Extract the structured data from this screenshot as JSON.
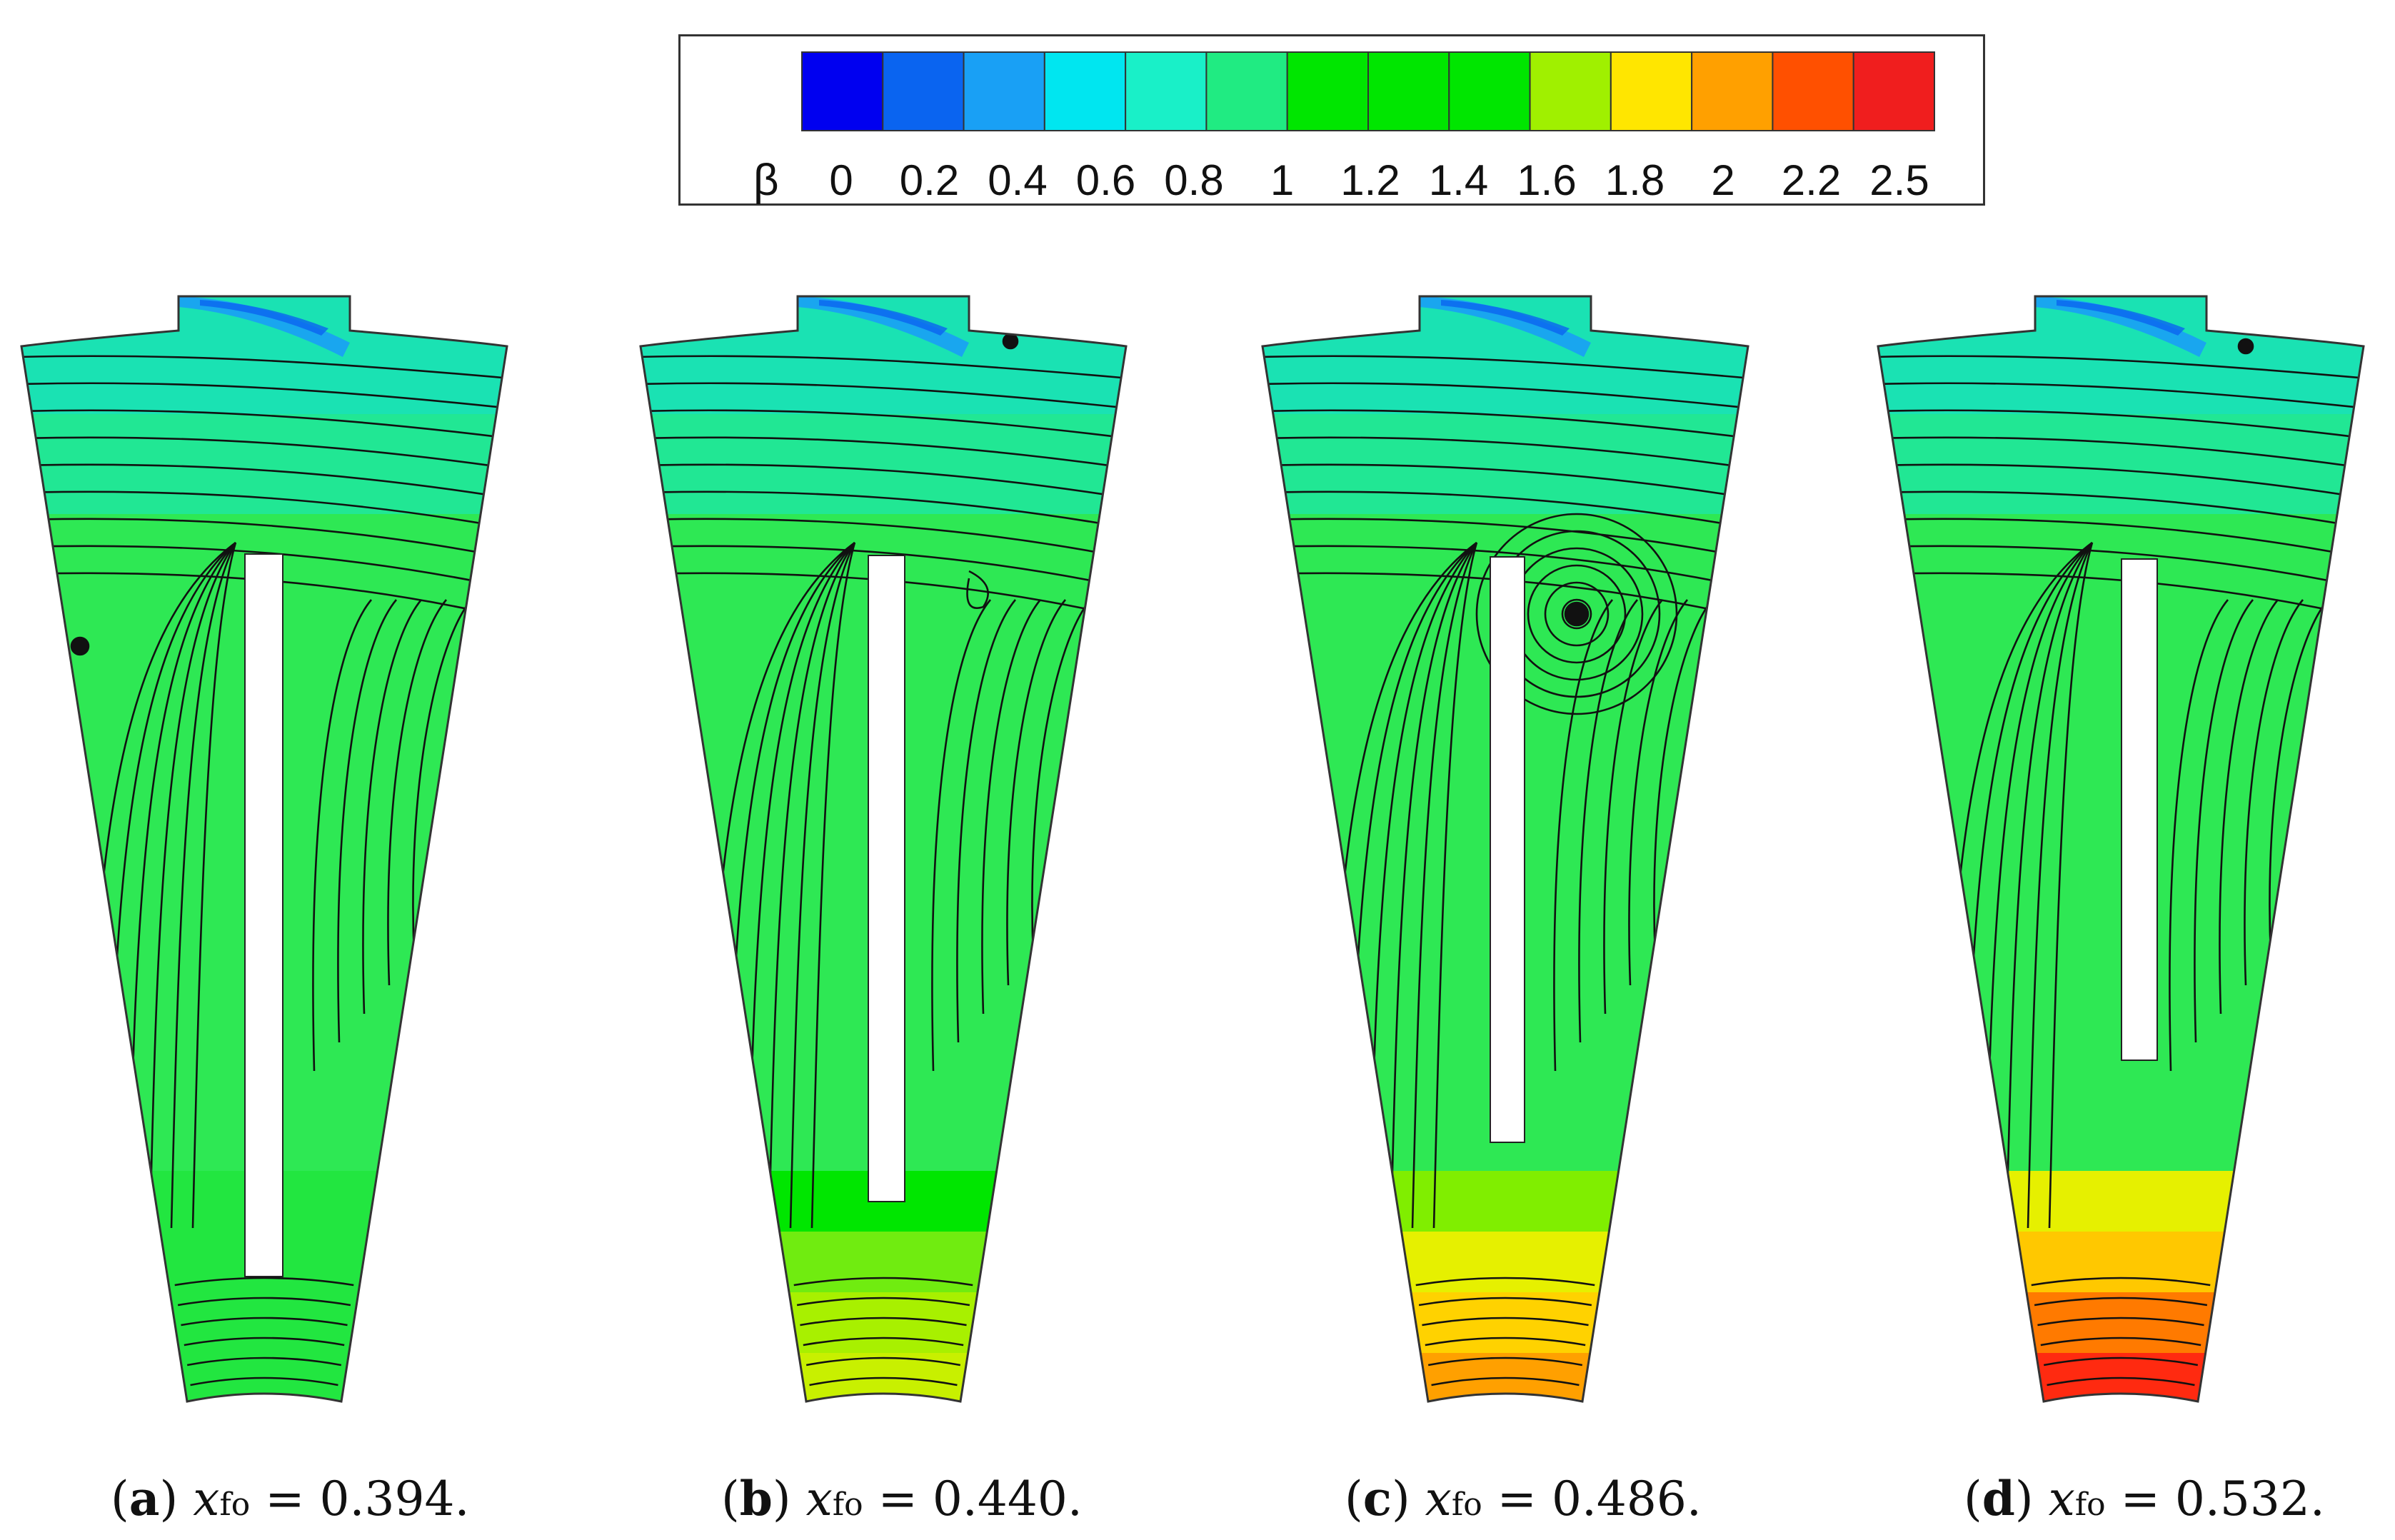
{
  "legend": {
    "symbol": "β",
    "levels": [
      "0",
      "0.2",
      "0.4",
      "0.6",
      "0.8",
      "1",
      "1.2",
      "1.4",
      "1.6",
      "1.8",
      "2",
      "2.2",
      "2.5"
    ],
    "colors": [
      "#0000f0",
      "#0a64f0",
      "#19a0f5",
      "#00e6f0",
      "#19f0c8",
      "#20eb82",
      "#00e600",
      "#00e600",
      "#00e600",
      "#a0f000",
      "#ffe600",
      "#ffa000",
      "#ff5000",
      "#f01e1e"
    ]
  },
  "panels": [
    {
      "id": "a",
      "letter": "a",
      "var": "x",
      "sub": "fo",
      "value": "= 0.394.",
      "bottom_colors": [
        "#22e640",
        "#22e640",
        "#22e640",
        "#22e640"
      ],
      "vortex": "left"
    },
    {
      "id": "b",
      "letter": "b",
      "var": "x",
      "sub": "fo",
      "value": "= 0.440.",
      "bottom_colors": [
        "#00e600",
        "#70ec10",
        "#a8f000",
        "#c8f000"
      ],
      "vortex": "right-top"
    },
    {
      "id": "c",
      "letter": "c",
      "var": "x",
      "sub": "fo",
      "value": "= 0.486.",
      "bottom_colors": [
        "#80ee00",
        "#e6f000",
        "#ffd200",
        "#ffa000"
      ],
      "vortex": "center"
    },
    {
      "id": "d",
      "letter": "d",
      "var": "x",
      "sub": "fo",
      "value": "= 0.532.",
      "bottom_colors": [
        "#e6f000",
        "#ffc800",
        "#ff7a00",
        "#ff2a10"
      ],
      "vortex": "none"
    }
  ]
}
